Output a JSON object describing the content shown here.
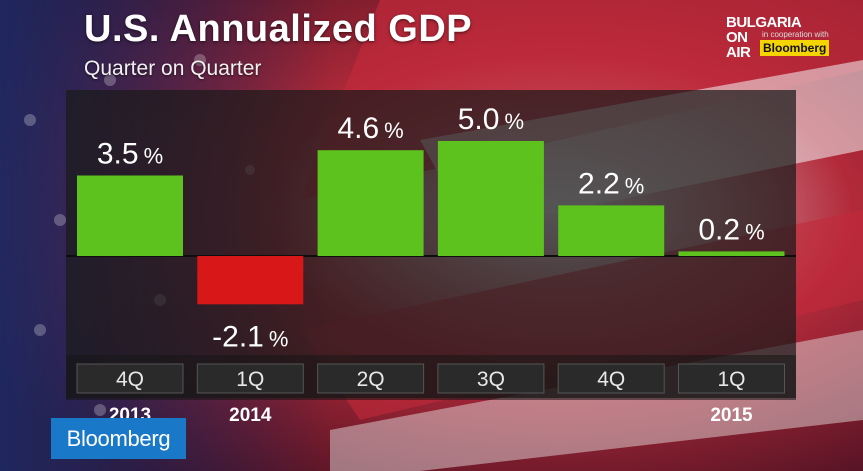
{
  "header": {
    "title": "U.S. Annualized GDP",
    "subtitle": "Quarter on Quarter"
  },
  "branding": {
    "line1": "BULGARIA",
    "line2": "ON",
    "line3": "AIR",
    "cooperation": "in cooperation with",
    "partner": "Bloomberg",
    "bottom_logo": "Bloomberg"
  },
  "colors": {
    "positive": "#5ec21e",
    "negative": "#d81818",
    "label_box": "#2a2a2a"
  },
  "chart_data": {
    "type": "bar",
    "title": "U.S. Annualized GDP",
    "subtitle": "Quarter on Quarter",
    "categories": [
      "4Q",
      "1Q",
      "2Q",
      "3Q",
      "4Q",
      "1Q"
    ],
    "year_labels": [
      "2013",
      "2014",
      "",
      "",
      "",
      "2015"
    ],
    "values": [
      3.5,
      -2.1,
      4.6,
      5.0,
      2.2,
      0.2
    ],
    "value_labels": [
      "3.5",
      "-2.1",
      "4.6",
      "5.0",
      "2.2",
      "0.2"
    ],
    "unit": "%",
    "ylim": [
      -2.5,
      6.0
    ],
    "xlabel": "",
    "ylabel": "",
    "grid": false,
    "legend": "none"
  }
}
